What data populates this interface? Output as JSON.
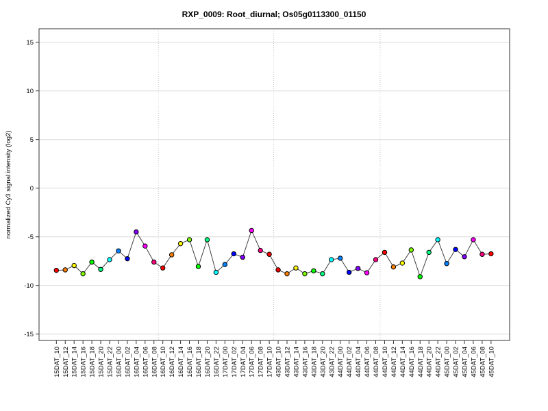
{
  "window": {
    "background_color": "#ffffff"
  },
  "chart_data": {
    "type": "line",
    "title": "RXP_0009: Root_diurnal; Os05g0113300_01150",
    "xlabel": "",
    "ylabel": "normalized Cy3 signal intensity (log2)",
    "ylim": [
      -15.7,
      16.4
    ],
    "yticks": [
      -15,
      -10,
      -5,
      0,
      5,
      10,
      15
    ],
    "grid": "horizontal solid light-gray lines at each y tick; vertical dotted light-gray separator lines between day blocks",
    "legend": "none",
    "categories": [
      "15DAT_10",
      "15DAT_12",
      "15DAT_14",
      "15DAT_16",
      "15DAT_18",
      "15DAT_20",
      "15DAT_22",
      "16DAT_00",
      "16DAT_02",
      "16DAT_04",
      "16DAT_06",
      "16DAT_08",
      "16DAT_10",
      "16DAT_12",
      "16DAT_14",
      "16DAT_16",
      "16DAT_18",
      "16DAT_20",
      "16DAT_22",
      "17DAT_00",
      "17DAT_02",
      "17DAT_04",
      "17DAT_06",
      "17DAT_08",
      "17DAT_10",
      "43DAT_10",
      "43DAT_12",
      "43DAT_14",
      "43DAT_16",
      "43DAT_18",
      "43DAT_20",
      "43DAT_22",
      "44DAT_00",
      "44DAT_02",
      "44DAT_04",
      "44DAT_06",
      "44DAT_08",
      "44DAT_10",
      "44DAT_12",
      "44DAT_14",
      "44DAT_16",
      "44DAT_18",
      "44DAT_20",
      "44DAT_22",
      "45DAT_00",
      "45DAT_02",
      "45DAT_04",
      "45DAT_06",
      "45DAT_08",
      "45DAT_10"
    ],
    "values": [
      -8.45,
      -8.4,
      -7.95,
      -8.8,
      -7.6,
      -8.35,
      -7.35,
      -6.45,
      -7.25,
      -4.5,
      -5.95,
      -7.6,
      -8.2,
      -6.85,
      -5.7,
      -5.3,
      -8.05,
      -5.3,
      -8.65,
      -7.85,
      -6.75,
      -7.1,
      -4.35,
      -6.4,
      -6.8,
      -8.4,
      -8.8,
      -8.2,
      -8.8,
      -8.5,
      -8.8,
      -7.35,
      -7.2,
      -8.65,
      -8.25,
      -8.7,
      -7.35,
      -6.6,
      -8.1,
      -7.7,
      -6.35,
      -9.1,
      -6.6,
      -5.3,
      -7.75,
      -6.3,
      -7.05,
      -5.3,
      -6.8,
      -6.75
    ],
    "point_colors": [
      "#FF0000",
      "#FF8000",
      "#FFFF00",
      "#80FF00",
      "#00FF00",
      "#00FF80",
      "#00FFFF",
      "#0080FF",
      "#0000FF",
      "#8000FF",
      "#FF00FF",
      "#FF0080",
      "#FF0000",
      "#FF8000",
      "#FFFF00",
      "#80FF00",
      "#00FF00",
      "#00FF80",
      "#00FFFF",
      "#0080FF",
      "#0000FF",
      "#8000FF",
      "#FF00FF",
      "#FF0080",
      "#FF0000",
      "#FF0000",
      "#FF8000",
      "#FFFF00",
      "#80FF00",
      "#00FF00",
      "#00FF80",
      "#00FFFF",
      "#0080FF",
      "#0000FF",
      "#8000FF",
      "#FF00FF",
      "#FF0080",
      "#FF0000",
      "#FF8000",
      "#FFFF00",
      "#80FF00",
      "#00FF00",
      "#00FF80",
      "#00FFFF",
      "#0080FF",
      "#0000FF",
      "#8000FF",
      "#FF00FF",
      "#FF0080",
      "#FF0000"
    ],
    "time_color_cycle": {
      "00": "#0080FF",
      "02": "#0000FF",
      "04": "#8000FF",
      "06": "#FF00FF",
      "08": "#FF0080",
      "10": "#FF0000",
      "12": "#FF8000",
      "14": "#FFFF00",
      "16": "#80FF00",
      "18": "#00FF00",
      "20": "#00FF80",
      "22": "#00FFFF"
    },
    "separator_after_categories": [
      "16DAT_08",
      "17DAT_10",
      "44DAT_08"
    ],
    "line_color": "#404040",
    "point_outline_color": "#000000",
    "gridline_color": "#d9d9d9",
    "separator_color": "#c8c8c8",
    "axis_color": "#333333"
  }
}
